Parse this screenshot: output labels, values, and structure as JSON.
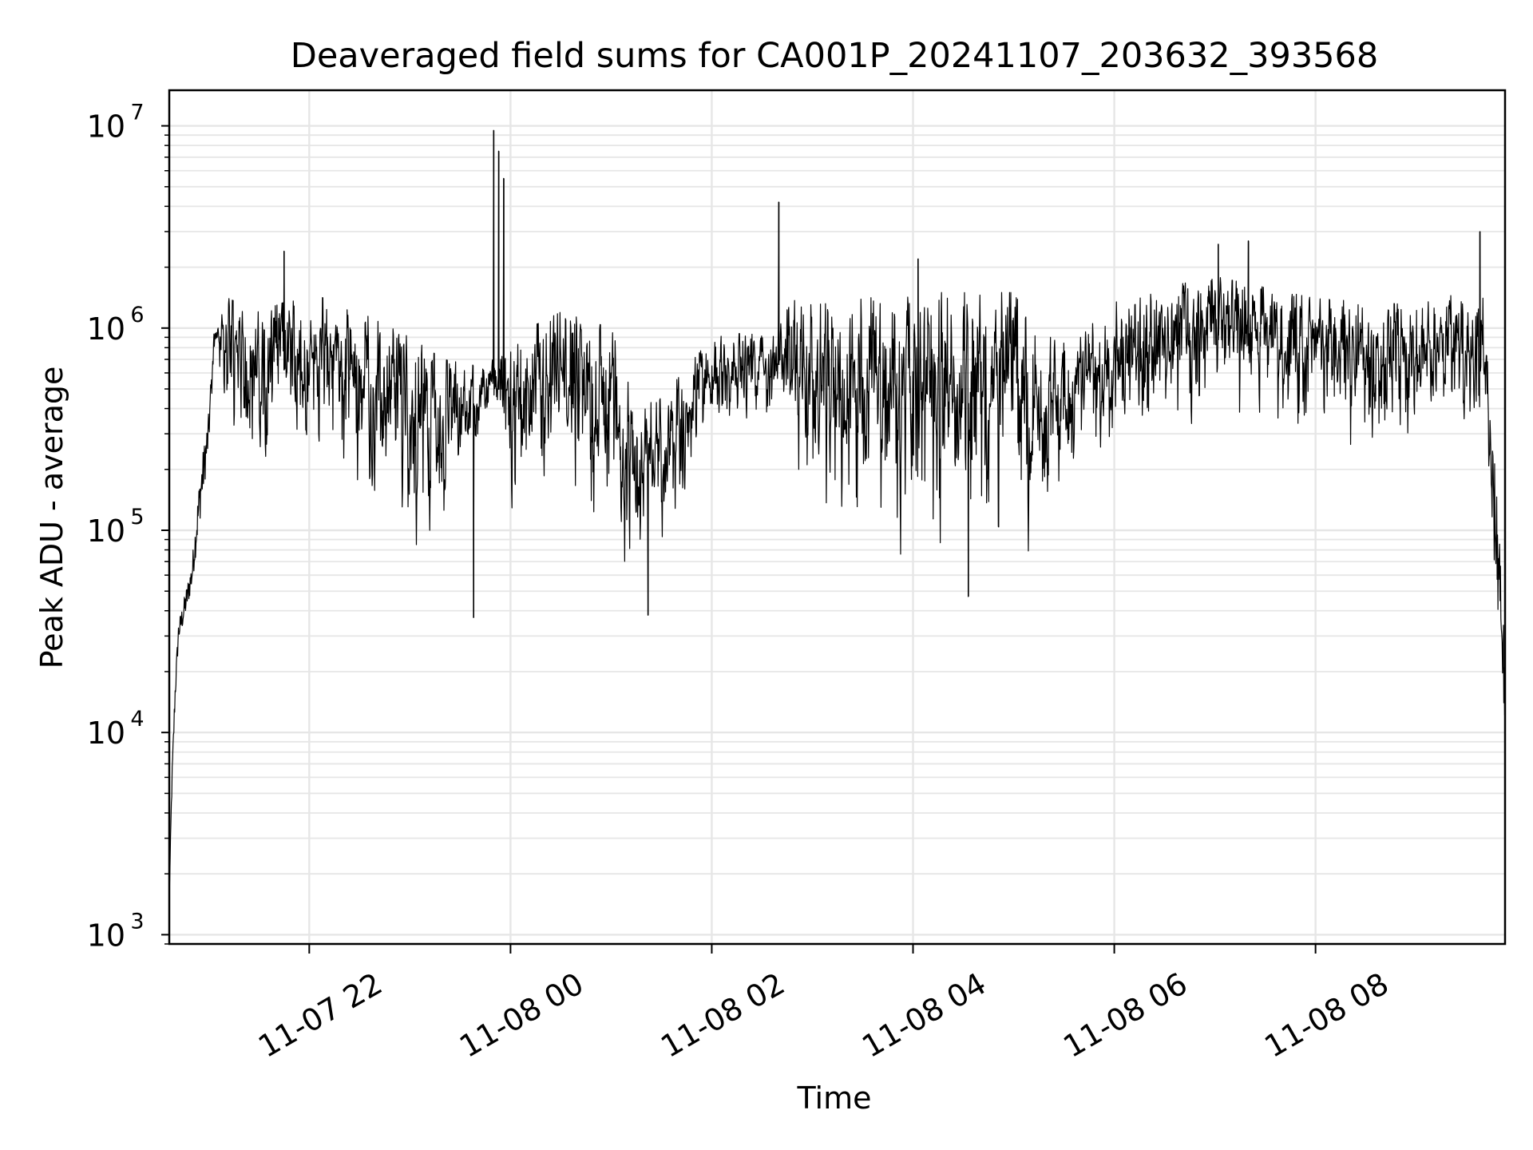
{
  "chart_data": {
    "type": "line",
    "title": "Deaveraged field sums for CA001P_20241107_203632_393568",
    "xlabel": "Time",
    "ylabel": "Peak ADU - average",
    "x_axis": {
      "type": "datetime",
      "range": [
        "2024-11-07T20:36:32",
        "2024-11-08T09:53:00"
      ],
      "ticks": [
        {
          "label": "11-07 22",
          "time": "2024-11-07T22:00:00"
        },
        {
          "label": "11-08 00",
          "time": "2024-11-08T00:00:00"
        },
        {
          "label": "11-08 02",
          "time": "2024-11-08T02:00:00"
        },
        {
          "label": "11-08 04",
          "time": "2024-11-08T04:00:00"
        },
        {
          "label": "11-08 06",
          "time": "2024-11-08T06:00:00"
        },
        {
          "label": "11-08 08",
          "time": "2024-11-08T08:00:00"
        }
      ]
    },
    "y_axis": {
      "scale": "log",
      "range": [
        900,
        15000000
      ],
      "ticks": [
        {
          "base": "10",
          "exp": "3",
          "value": 1000
        },
        {
          "base": "10",
          "exp": "4",
          "value": 10000
        },
        {
          "base": "10",
          "exp": "5",
          "value": 100000
        },
        {
          "base": "10",
          "exp": "6",
          "value": 1000000
        },
        {
          "base": "10",
          "exp": "7",
          "value": 10000000
        }
      ]
    },
    "grid": true,
    "line_color": "#000000",
    "series": [
      {
        "profile": [
          {
            "t": "2024-11-07T20:36:32",
            "low": 1500,
            "high": 1500
          },
          {
            "t": "2024-11-07T20:38:00",
            "low": 4000,
            "high": 6000
          },
          {
            "t": "2024-11-07T20:40:00",
            "low": 12000,
            "high": 18000
          },
          {
            "t": "2024-11-07T20:42:00",
            "low": 25000,
            "high": 35000
          },
          {
            "t": "2024-11-07T20:45:00",
            "low": 30000,
            "high": 45000
          },
          {
            "t": "2024-11-07T20:50:00",
            "low": 45000,
            "high": 70000
          },
          {
            "t": "2024-11-07T20:55:00",
            "low": 90000,
            "high": 200000
          },
          {
            "t": "2024-11-07T21:00:00",
            "low": 200000,
            "high": 380000
          },
          {
            "t": "2024-11-07T21:03:00",
            "low": 600000,
            "high": 1000000
          },
          {
            "t": "2024-11-07T21:06:00",
            "low": 700000,
            "high": 1200000
          },
          {
            "t": "2024-11-07T21:12:00",
            "low": 200000,
            "high": 1400000
          },
          {
            "t": "2024-11-07T21:30:00",
            "low": 150000,
            "high": 1200000
          },
          {
            "t": "2024-11-07T22:00:00",
            "low": 250000,
            "high": 1500000
          },
          {
            "t": "2024-11-07T22:30:00",
            "low": 150000,
            "high": 1200000
          },
          {
            "t": "2024-11-07T23:00:00",
            "low": 70000,
            "high": 900000
          },
          {
            "t": "2024-11-07T23:20:00",
            "low": 70000,
            "high": 700000
          },
          {
            "t": "2024-11-07T23:40:00",
            "low": 250000,
            "high": 650000
          },
          {
            "t": "2024-11-07T23:50:00",
            "low": 400000,
            "high": 700000
          },
          {
            "t": "2024-11-08T00:00:00",
            "low": 100000,
            "high": 900000
          },
          {
            "t": "2024-11-08T00:30:00",
            "low": 100000,
            "high": 1200000
          },
          {
            "t": "2024-11-08T01:00:00",
            "low": 80000,
            "high": 1000000
          },
          {
            "t": "2024-11-08T01:15:00",
            "low": 60000,
            "high": 400000
          },
          {
            "t": "2024-11-08T01:30:00",
            "low": 60000,
            "high": 450000
          },
          {
            "t": "2024-11-08T02:00:00",
            "low": 300000,
            "high": 900000
          },
          {
            "t": "2024-11-08T02:40:00",
            "low": 350000,
            "high": 1000000
          },
          {
            "t": "2024-11-08T02:45:00",
            "low": 250000,
            "high": 1400000
          },
          {
            "t": "2024-11-08T03:00:00",
            "low": 80000,
            "high": 1300000
          },
          {
            "t": "2024-11-08T04:00:00",
            "low": 70000,
            "high": 1500000
          },
          {
            "t": "2024-11-08T05:00:00",
            "low": 60000,
            "high": 1500000
          },
          {
            "t": "2024-11-08T05:15:00",
            "low": 90000,
            "high": 900000
          },
          {
            "t": "2024-11-08T05:40:00",
            "low": 150000,
            "high": 900000
          },
          {
            "t": "2024-11-08T06:00:00",
            "low": 250000,
            "high": 1400000
          },
          {
            "t": "2024-11-08T07:00:00",
            "low": 300000,
            "high": 1800000
          },
          {
            "t": "2024-11-08T08:00:00",
            "low": 250000,
            "high": 1400000
          },
          {
            "t": "2024-11-08T09:00:00",
            "low": 250000,
            "high": 1300000
          },
          {
            "t": "2024-11-08T09:40:00",
            "low": 300000,
            "high": 1600000
          },
          {
            "t": "2024-11-08T09:45:00",
            "low": 60000,
            "high": 300000
          },
          {
            "t": "2024-11-08T09:50:00",
            "low": 15000,
            "high": 120000
          },
          {
            "t": "2024-11-08T09:53:00",
            "low": 7000,
            "high": 20000
          }
        ],
        "spikes": [
          {
            "t": "2024-11-07T21:45:00",
            "value": 2400000
          },
          {
            "t": "2024-11-07T23:50:00",
            "value": 9500000
          },
          {
            "t": "2024-11-07T23:53:00",
            "value": 7500000
          },
          {
            "t": "2024-11-07T23:56:00",
            "value": 5500000
          },
          {
            "t": "2024-11-07T23:38:00",
            "value": 37000
          },
          {
            "t": "2024-11-08T02:40:00",
            "value": 4200000
          },
          {
            "t": "2024-11-08T04:03:00",
            "value": 2200000
          },
          {
            "t": "2024-11-08T07:02:00",
            "value": 2600000
          },
          {
            "t": "2024-11-08T07:20:00",
            "value": 2700000
          },
          {
            "t": "2024-11-08T09:38:00",
            "value": 3000000
          },
          {
            "t": "2024-11-08T04:33:00",
            "value": 47000
          },
          {
            "t": "2024-11-08T01:22:00",
            "value": 38000
          }
        ]
      }
    ]
  }
}
